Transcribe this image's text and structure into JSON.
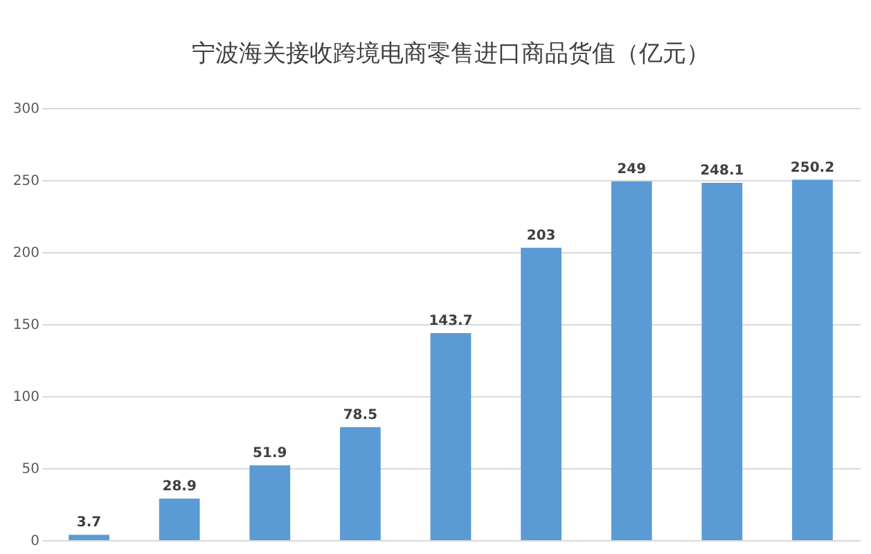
{
  "chart_data": {
    "type": "bar",
    "title": "宁波海关接收跨境电商零售进口商品货值（亿元）",
    "categories": [
      null,
      null,
      null,
      null,
      null,
      null,
      null,
      null,
      null
    ],
    "values": [
      3.7,
      28.9,
      51.9,
      78.5,
      143.7,
      203,
      249,
      248.1,
      250.2
    ],
    "color": "#5b9bd5",
    "ylim": [
      0,
      300
    ],
    "yticks": [
      0,
      50,
      100,
      150,
      200,
      250,
      300
    ],
    "grid": "y",
    "data_labels": true,
    "tick_labels": "y"
  }
}
